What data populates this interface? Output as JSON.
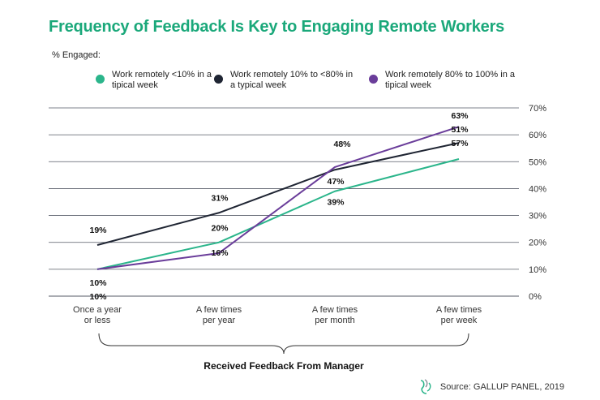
{
  "title": "Frequency of Feedback Is Key to Engaging Remote Workers",
  "y_axis_caption": "% Engaged:",
  "source": "Source: GALLUP PANEL, 2019",
  "colors": {
    "title": "#1aa87a",
    "series_green": "#2bb58b",
    "series_navy": "#1f2533",
    "series_purple": "#6a3d9a",
    "grid": "#555a66"
  },
  "chart_data": {
    "type": "line",
    "title": "Frequency of Feedback Is Key to Engaging Remote Workers",
    "ylabel": "% Engaged:",
    "xlabel": "Received Feedback From Manager",
    "categories": [
      "Once a year\nor less",
      "A few times\nper year",
      "A few times\nper month",
      "A few times\nper week"
    ],
    "ylim": [
      0,
      70
    ],
    "yticks": [
      0,
      10,
      20,
      30,
      40,
      50,
      60,
      70
    ],
    "ytick_labels": [
      "0%",
      "10%",
      "20%",
      "30%",
      "40%",
      "50%",
      "60%",
      "70%"
    ],
    "grid": true,
    "legend_position": "top",
    "series": [
      {
        "name": "Work remotely <10% in a tipical week",
        "color": "#2bb58b",
        "values": [
          10,
          20,
          39,
          51
        ],
        "labels": [
          "10%",
          "20%",
          "39%",
          "51%"
        ]
      },
      {
        "name": "Work remotely 10% to <80% in a typical week",
        "color": "#1f2533",
        "values": [
          19,
          31,
          47,
          57
        ],
        "labels": [
          "19%",
          "31%",
          "47%",
          "57%"
        ]
      },
      {
        "name": "Work remotely 80% to 100% in a tipical week",
        "color": "#6a3d9a",
        "values": [
          10,
          16,
          48,
          63
        ],
        "labels": [
          "10%",
          "16%",
          "48%",
          "63%"
        ]
      }
    ]
  }
}
